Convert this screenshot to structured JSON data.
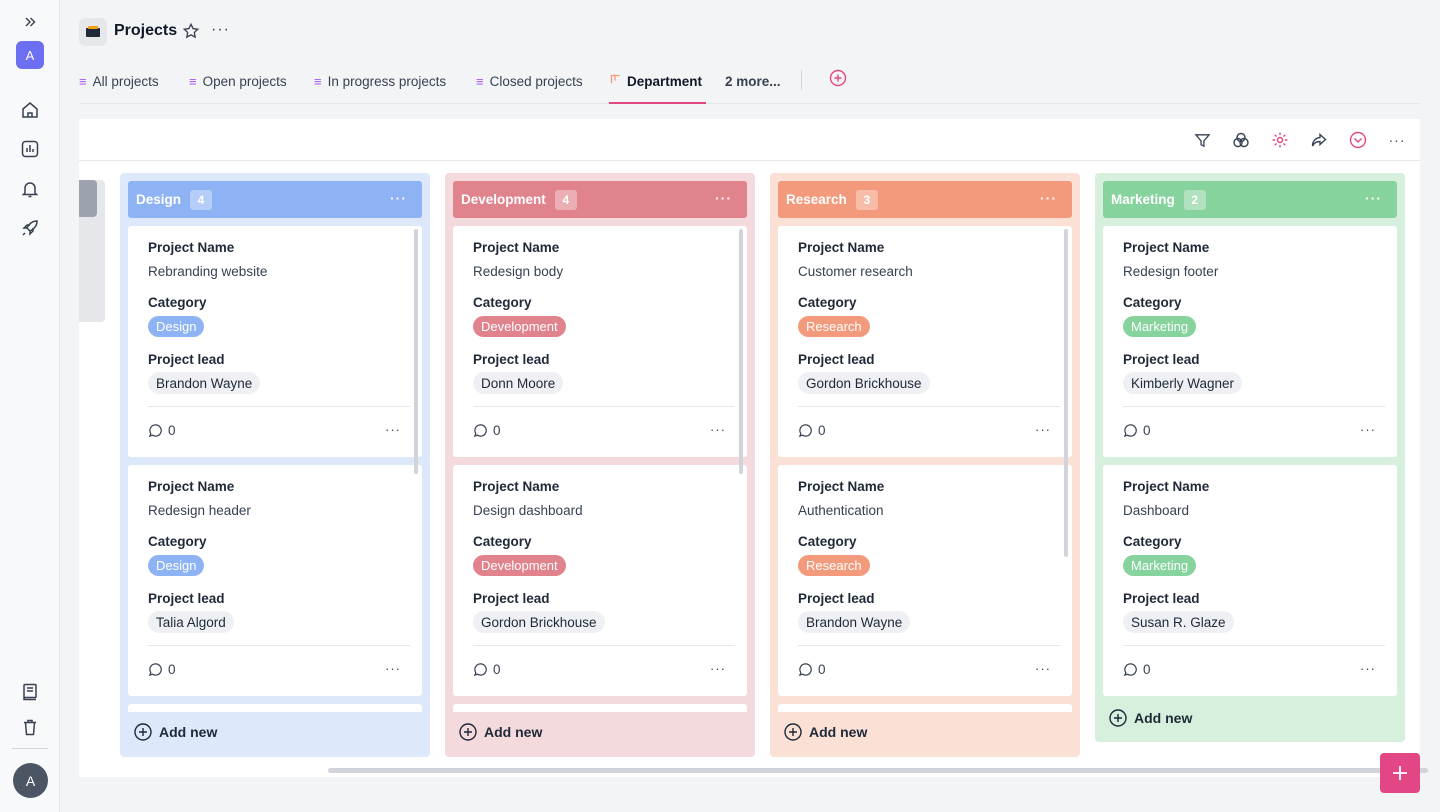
{
  "sidebar": {
    "workspace_initial": "A",
    "user_initial": "A",
    "icons": [
      "chevrons-right-icon",
      "home-icon",
      "report-icon",
      "bell-icon",
      "rocket-icon",
      "book-icon",
      "trash-icon"
    ]
  },
  "header": {
    "title": "Projects"
  },
  "tabs": [
    {
      "label": "All projects"
    },
    {
      "label": "Open projects"
    },
    {
      "label": "In progress projects"
    },
    {
      "label": "Closed projects"
    },
    {
      "label": "Department"
    },
    {
      "label": "2 more..."
    }
  ],
  "columns": [
    {
      "title": "Design",
      "count": "4",
      "color": "#8eb3f4",
      "bg": "#dde8fb",
      "cards": [
        {
          "name_label": "Project Name",
          "name": "Rebranding website",
          "category_label": "Category",
          "category": "Design",
          "lead_label": "Project lead",
          "lead": "Brandon Wayne",
          "comments": "0"
        },
        {
          "name_label": "Project Name",
          "name": "Redesign header",
          "category_label": "Category",
          "category": "Design",
          "lead_label": "Project lead",
          "lead": "Talia Algord",
          "comments": "0"
        }
      ],
      "add_label": "Add new"
    },
    {
      "title": "Development",
      "count": "4",
      "color": "#e0838c",
      "bg": "#f4dadd",
      "cards": [
        {
          "name_label": "Project Name",
          "name": "Redesign body",
          "category_label": "Category",
          "category": "Development",
          "lead_label": "Project lead",
          "lead": "Donn Moore",
          "comments": "0"
        },
        {
          "name_label": "Project Name",
          "name": "Design dashboard",
          "category_label": "Category",
          "category": "Development",
          "lead_label": "Project lead",
          "lead": "Gordon Brickhouse",
          "comments": "0"
        }
      ],
      "add_label": "Add new"
    },
    {
      "title": "Research",
      "count": "3",
      "color": "#f39a7c",
      "bg": "#fbe0d6",
      "cards": [
        {
          "name_label": "Project Name",
          "name": "Customer research",
          "category_label": "Category",
          "category": "Research",
          "lead_label": "Project lead",
          "lead": "Gordon Brickhouse",
          "comments": "0"
        },
        {
          "name_label": "Project Name",
          "name": "Authentication",
          "category_label": "Category",
          "category": "Research",
          "lead_label": "Project lead",
          "lead": "Brandon Wayne",
          "comments": "0"
        }
      ],
      "add_label": "Add new"
    },
    {
      "title": "Marketing",
      "count": "2",
      "color": "#86d39e",
      "bg": "#d6f0dd",
      "cards": [
        {
          "name_label": "Project Name",
          "name": "Redesign footer",
          "category_label": "Category",
          "category": "Marketing",
          "lead_label": "Project lead",
          "lead": "Kimberly Wagner",
          "comments": "0"
        },
        {
          "name_label": "Project Name",
          "name": "Dashboard",
          "category_label": "Category",
          "category": "Marketing",
          "lead_label": "Project lead",
          "lead": "Susan R. Glaze",
          "comments": "0"
        }
      ],
      "add_label": "Add new"
    }
  ],
  "colors": {
    "accent": "#e24684",
    "workspace": "#6d6ff2"
  }
}
